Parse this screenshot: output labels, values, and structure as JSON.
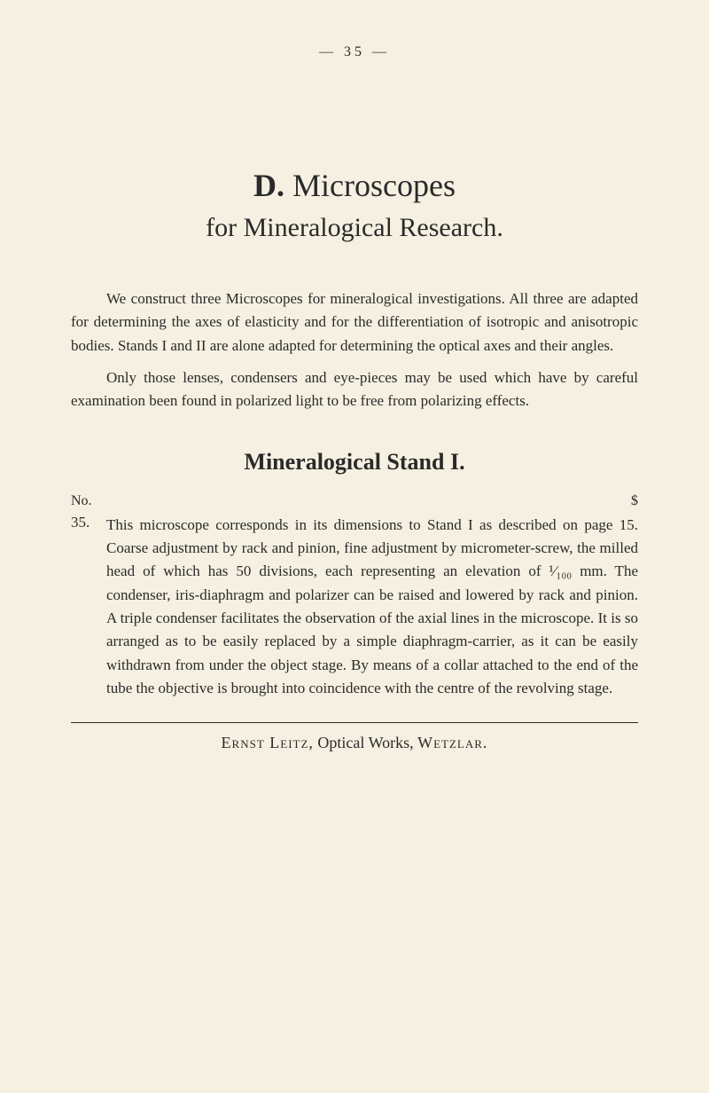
{
  "page_number": "— 35 —",
  "title": {
    "label": "D.",
    "main": "Microscopes",
    "subtitle": "for Mineralogical Research."
  },
  "paragraphs": {
    "p1": "We construct three Microscopes for mineralogical investigations. All three are adapted for determining the axes of elasticity and for the differentiation of isotropic and anisotropic bodies. Stands I and II are alone adapted for determining the optical axes and their angles.",
    "p2": "Only those lenses, condensers and eye-pieces may be used which have by careful examination been found in polarized light to be free from polarizing effects."
  },
  "stand": {
    "title": "Mineralogical Stand I.",
    "no_label": "No.",
    "dollar_label": "$",
    "entry_number": "35.",
    "entry_text": "This microscope corresponds in its dimensions to Stand I as described on page 15. Coarse adjustment by rack and pinion, fine adjustment by micrometer-screw, the milled head of which has 50 divisions, each representing an elevation of ¹⁄₁₀₀ mm. The condenser, iris-diaphragm and polarizer can be raised and lowered by rack and pinion. A triple condenser facilitates the observation of the axial lines in the microscope. It is so arranged as to be easily replaced by a simple diaphragm-carrier, as it can be easily withdrawn from under the object stage. By means of a collar attached to the end of the tube the objective is brought into coincidence with the centre of the revolving stage."
  },
  "footer": {
    "name": "Ernst Leitz,",
    "middle": " Optical Works, ",
    "place": "Wetzlar."
  }
}
